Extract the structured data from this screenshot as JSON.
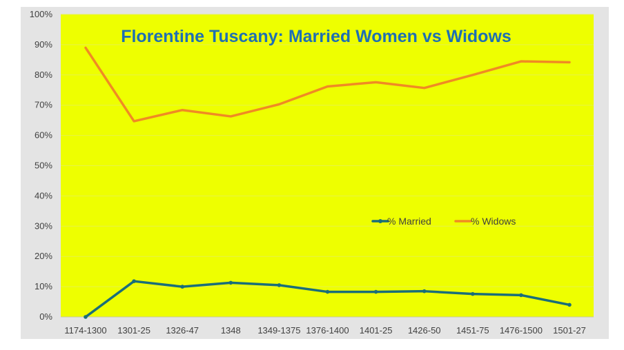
{
  "chart_data": {
    "type": "line",
    "title": "Florentine Tuscany: Married Women vs Widows",
    "categories": [
      "1174-1300",
      "1301-25",
      "1326-47",
      "1348",
      "1349-1375",
      "1376-1400",
      "1401-25",
      "1426-50",
      "1451-75",
      "1476-1500",
      "1501-27"
    ],
    "y_tick_labels": [
      "0%",
      "10%",
      "20%",
      "30%",
      "40%",
      "50%",
      "60%",
      "70%",
      "80%",
      "90%",
      "100%"
    ],
    "ylim": [
      0,
      100
    ],
    "grid": true,
    "legend_position": "right-middle",
    "plot_background": "#eeff00",
    "frame_background": "#e4e4e4",
    "title_color": "#1f6fb3",
    "series": [
      {
        "name": "% Married",
        "color": "#1a6e7a",
        "values": [
          0,
          11.8,
          10.0,
          11.3,
          10.5,
          8.3,
          8.3,
          8.5,
          7.6,
          7.2,
          4.0
        ]
      },
      {
        "name": "% Widows",
        "color": "#f08a24",
        "values": [
          89.0,
          64.7,
          68.4,
          66.3,
          70.3,
          76.2,
          77.6,
          75.7,
          80.0,
          84.5,
          84.2
        ]
      }
    ]
  }
}
